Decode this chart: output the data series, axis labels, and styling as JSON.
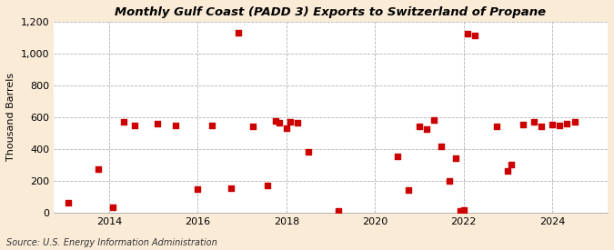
{
  "title": "Monthly Gulf Coast (PADD 3) Exports to Switzerland of Propane",
  "ylabel": "Thousand Barrels",
  "source": "Source: U.S. Energy Information Administration",
  "background_color": "#faebd7",
  "plot_background_color": "#ffffff",
  "marker_color": "#cc0000",
  "marker_size": 22,
  "ylim": [
    0,
    1200
  ],
  "yticks": [
    0,
    200,
    400,
    600,
    800,
    1000,
    1200
  ],
  "xlim_start": 2012.75,
  "xlim_end": 2025.25,
  "xticks": [
    2014,
    2016,
    2018,
    2020,
    2022,
    2024
  ],
  "data_points": [
    [
      2013.08,
      65
    ],
    [
      2013.75,
      275
    ],
    [
      2014.08,
      35
    ],
    [
      2014.33,
      570
    ],
    [
      2014.58,
      550
    ],
    [
      2015.08,
      560
    ],
    [
      2015.5,
      550
    ],
    [
      2016.0,
      150
    ],
    [
      2016.33,
      550
    ],
    [
      2016.75,
      155
    ],
    [
      2016.92,
      1130
    ],
    [
      2017.25,
      540
    ],
    [
      2017.58,
      170
    ],
    [
      2017.75,
      575
    ],
    [
      2017.83,
      565
    ],
    [
      2018.0,
      530
    ],
    [
      2018.08,
      570
    ],
    [
      2018.25,
      565
    ],
    [
      2018.5,
      380
    ],
    [
      2019.17,
      10
    ],
    [
      2020.5,
      355
    ],
    [
      2020.75,
      145
    ],
    [
      2021.0,
      540
    ],
    [
      2021.17,
      525
    ],
    [
      2021.33,
      580
    ],
    [
      2021.5,
      415
    ],
    [
      2021.67,
      200
    ],
    [
      2021.83,
      340
    ],
    [
      2021.92,
      10
    ],
    [
      2022.0,
      15
    ],
    [
      2022.08,
      1125
    ],
    [
      2022.25,
      1115
    ],
    [
      2022.75,
      540
    ],
    [
      2023.0,
      265
    ],
    [
      2023.08,
      305
    ],
    [
      2023.33,
      555
    ],
    [
      2023.58,
      570
    ],
    [
      2023.75,
      545
    ],
    [
      2024.0,
      555
    ],
    [
      2024.17,
      550
    ],
    [
      2024.33,
      560
    ],
    [
      2024.5,
      570
    ]
  ]
}
